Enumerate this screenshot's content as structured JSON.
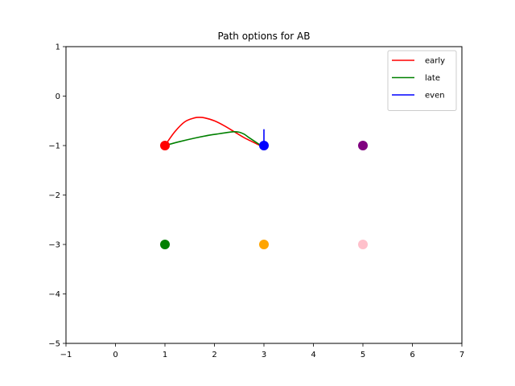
{
  "chart_data": {
    "type": "line",
    "title": "Path options for AB",
    "xlabel": "",
    "ylabel": "",
    "xlim": [
      -1,
      7
    ],
    "ylim": [
      -5,
      1
    ],
    "xticks": [
      -1,
      0,
      1,
      2,
      3,
      4,
      5,
      6,
      7
    ],
    "yticks": [
      1,
      0,
      -1,
      -2,
      -3,
      -4,
      -5
    ],
    "grid": false,
    "legend_position": "top-right",
    "series": [
      {
        "name": "early",
        "color": "#ff0000",
        "x": [
          1.0,
          1.2,
          1.4,
          1.6,
          1.7,
          1.8,
          2.0,
          2.2,
          2.4,
          2.6,
          2.8,
          3.0
        ],
        "y": [
          -1.0,
          -0.72,
          -0.52,
          -0.44,
          -0.43,
          -0.44,
          -0.5,
          -0.6,
          -0.72,
          -0.84,
          -0.94,
          -1.04
        ]
      },
      {
        "name": "late",
        "color": "#008000",
        "x": [
          1.0,
          1.3,
          1.6,
          1.9,
          2.1,
          2.3,
          2.4,
          2.5,
          2.6,
          2.7,
          2.85,
          3.0
        ],
        "y": [
          -1.0,
          -0.92,
          -0.85,
          -0.79,
          -0.76,
          -0.73,
          -0.72,
          -0.73,
          -0.77,
          -0.84,
          -0.94,
          -1.04
        ]
      },
      {
        "name": "even",
        "color": "#0000ff",
        "x": [
          3.0,
          3.0
        ],
        "y": [
          -0.67,
          -1.0
        ]
      }
    ],
    "points": [
      {
        "x": 1,
        "y": -1,
        "color": "#ff0000"
      },
      {
        "x": 3,
        "y": -1,
        "color": "#0000ff"
      },
      {
        "x": 5,
        "y": -1,
        "color": "#800080"
      },
      {
        "x": 1,
        "y": -3,
        "color": "#008000"
      },
      {
        "x": 3,
        "y": -3,
        "color": "#ffa500"
      },
      {
        "x": 5,
        "y": -3,
        "color": "#ffc0cb"
      }
    ]
  }
}
